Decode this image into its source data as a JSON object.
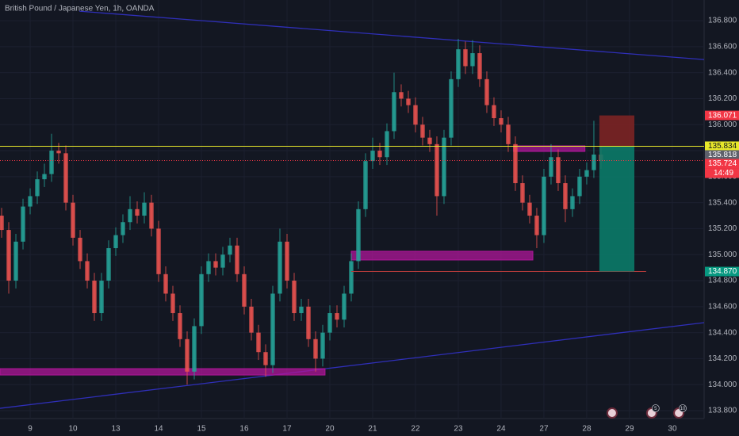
{
  "chart_data": {
    "type": "candlestick",
    "title": "British Pound / Japanese Yen, 1h, OANDA",
    "up_color": "#26a69a",
    "down_color": "#ef5350",
    "grid": true,
    "xlim": [
      -16.9,
      377.8
    ],
    "ylim": [
      133.739,
      136.959
    ],
    "xticks": [
      {
        "value": 0,
        "label": "9"
      },
      {
        "value": 24,
        "label": "10"
      },
      {
        "value": 48,
        "label": "13"
      },
      {
        "value": 72,
        "label": "14"
      },
      {
        "value": 96,
        "label": "15"
      },
      {
        "value": 120,
        "label": "16"
      },
      {
        "value": 144,
        "label": "17"
      },
      {
        "value": 168,
        "label": "20"
      },
      {
        "value": 192,
        "label": "21"
      },
      {
        "value": 216,
        "label": "22"
      },
      {
        "value": 240,
        "label": "23"
      },
      {
        "value": 264,
        "label": "24"
      },
      {
        "value": 288,
        "label": "27"
      },
      {
        "value": 312,
        "label": "28"
      },
      {
        "value": 336,
        "label": "29"
      },
      {
        "value": 360,
        "label": "30"
      }
    ],
    "yticks": [
      {
        "value": 133.8,
        "label": "133.800"
      },
      {
        "value": 134,
        "label": "134.000"
      },
      {
        "value": 134.2,
        "label": "134.200"
      },
      {
        "value": 134.4,
        "label": "134.400"
      },
      {
        "value": 134.6,
        "label": "134.600"
      },
      {
        "value": 134.8,
        "label": "134.800"
      },
      {
        "value": 135,
        "label": "135.000"
      },
      {
        "value": 135.2,
        "label": "135.200"
      },
      {
        "value": 135.4,
        "label": "135.400"
      },
      {
        "value": 135.6,
        "label": "135.600"
      },
      {
        "value": 135.8,
        "label": "135.800"
      },
      {
        "value": 136,
        "label": "136.000"
      },
      {
        "value": 136.2,
        "label": "136.200"
      },
      {
        "value": 136.4,
        "label": "136.400"
      },
      {
        "value": 136.6,
        "label": "136.600"
      },
      {
        "value": 136.8,
        "label": "136.800"
      }
    ],
    "x": [
      -16,
      -12,
      -8,
      -4,
      0,
      4,
      8,
      12,
      16,
      20,
      24,
      28,
      32,
      36,
      40,
      44,
      48,
      52,
      56,
      60,
      64,
      68,
      72,
      76,
      80,
      84,
      88,
      92,
      96,
      100,
      104,
      108,
      112,
      116,
      120,
      124,
      128,
      132,
      136,
      140,
      144,
      148,
      152,
      156,
      160,
      164,
      168,
      172,
      176,
      180,
      184,
      188,
      192,
      196,
      200,
      204,
      208,
      212,
      216,
      220,
      224,
      228,
      232,
      236,
      240,
      244,
      248,
      252,
      256,
      260,
      264,
      268,
      272,
      276,
      280,
      284,
      288,
      292,
      296,
      300,
      304,
      308,
      312,
      316,
      320
    ],
    "ohlc": [
      [
        135.3,
        135.36,
        135.13,
        135.19
      ],
      [
        135.19,
        135.25,
        134.7,
        134.8
      ],
      [
        134.8,
        135.16,
        134.74,
        135.1
      ],
      [
        135.1,
        135.43,
        135.04,
        135.37
      ],
      [
        135.37,
        135.51,
        135.31,
        135.45
      ],
      [
        135.45,
        135.64,
        135.39,
        135.58
      ],
      [
        135.58,
        135.7,
        135.52,
        135.62
      ],
      [
        135.62,
        135.93,
        135.56,
        135.8
      ],
      [
        135.8,
        135.86,
        135.7,
        135.78
      ],
      [
        135.78,
        135.84,
        135.34,
        135.4
      ],
      [
        135.4,
        135.46,
        135.07,
        135.13
      ],
      [
        135.13,
        135.19,
        134.89,
        134.95
      ],
      [
        134.95,
        135.01,
        134.74,
        134.8
      ],
      [
        134.8,
        134.86,
        134.49,
        134.55
      ],
      [
        134.55,
        134.86,
        134.49,
        134.8
      ],
      [
        134.8,
        135.11,
        134.74,
        135.05
      ],
      [
        135.05,
        135.21,
        134.99,
        135.15
      ],
      [
        135.15,
        135.31,
        135.09,
        135.25
      ],
      [
        135.25,
        135.45,
        135.19,
        135.35
      ],
      [
        135.35,
        135.41,
        135.24,
        135.3
      ],
      [
        135.3,
        135.48,
        135.24,
        135.4
      ],
      [
        135.4,
        135.46,
        135.14,
        135.2
      ],
      [
        135.2,
        135.26,
        134.79,
        134.85
      ],
      [
        134.85,
        134.91,
        134.64,
        134.7
      ],
      [
        134.7,
        134.76,
        134.49,
        134.55
      ],
      [
        134.55,
        134.61,
        134.29,
        134.35
      ],
      [
        134.35,
        134.41,
        134.0,
        134.1
      ],
      [
        134.1,
        134.51,
        134.04,
        134.45
      ],
      [
        134.45,
        134.91,
        134.39,
        134.85
      ],
      [
        134.85,
        135.01,
        134.79,
        134.95
      ],
      [
        134.95,
        135.01,
        134.84,
        134.9
      ],
      [
        134.9,
        135.06,
        134.84,
        135.0
      ],
      [
        135.0,
        135.13,
        134.94,
        135.07
      ],
      [
        135.07,
        135.13,
        134.79,
        134.85
      ],
      [
        134.85,
        134.91,
        134.54,
        134.6
      ],
      [
        134.6,
        134.66,
        134.34,
        134.4
      ],
      [
        134.4,
        134.46,
        134.19,
        134.25
      ],
      [
        134.25,
        134.31,
        134.06,
        134.15
      ],
      [
        134.15,
        134.76,
        134.09,
        134.7
      ],
      [
        134.7,
        135.2,
        134.64,
        135.1
      ],
      [
        135.1,
        135.16,
        134.74,
        134.8
      ],
      [
        134.8,
        134.86,
        134.49,
        134.55
      ],
      [
        134.55,
        134.66,
        134.49,
        134.6
      ],
      [
        134.6,
        134.66,
        134.29,
        134.35
      ],
      [
        134.35,
        134.41,
        134.1,
        134.2
      ],
      [
        134.2,
        134.46,
        134.14,
        134.4
      ],
      [
        134.4,
        134.61,
        134.34,
        134.55
      ],
      [
        134.55,
        134.61,
        134.44,
        134.5
      ],
      [
        134.5,
        134.76,
        134.44,
        134.7
      ],
      [
        134.7,
        135.01,
        134.64,
        134.95
      ],
      [
        134.95,
        135.41,
        134.89,
        135.35
      ],
      [
        135.35,
        135.78,
        135.29,
        135.72
      ],
      [
        135.72,
        135.9,
        135.66,
        135.8
      ],
      [
        135.8,
        135.86,
        135.69,
        135.75
      ],
      [
        135.75,
        136.01,
        135.69,
        135.95
      ],
      [
        135.95,
        136.4,
        135.89,
        136.25
      ],
      [
        136.25,
        136.31,
        136.14,
        136.2
      ],
      [
        136.2,
        136.26,
        136.09,
        136.15
      ],
      [
        136.15,
        136.21,
        135.94,
        136.0
      ],
      [
        136.0,
        136.06,
        135.84,
        135.9
      ],
      [
        135.9,
        135.96,
        135.79,
        135.85
      ],
      [
        135.85,
        135.91,
        135.3,
        135.45
      ],
      [
        135.45,
        135.96,
        135.39,
        135.9
      ],
      [
        135.9,
        136.41,
        135.84,
        136.35
      ],
      [
        136.35,
        136.66,
        136.29,
        136.58
      ],
      [
        136.58,
        136.64,
        136.39,
        136.45
      ],
      [
        136.45,
        136.65,
        136.39,
        136.55
      ],
      [
        136.55,
        136.61,
        136.29,
        136.35
      ],
      [
        136.35,
        136.41,
        136.09,
        136.15
      ],
      [
        136.15,
        136.21,
        135.99,
        136.05
      ],
      [
        136.05,
        136.11,
        135.94,
        136.0
      ],
      [
        136.0,
        136.06,
        135.79,
        135.85
      ],
      [
        135.85,
        135.91,
        135.49,
        135.55
      ],
      [
        135.55,
        135.61,
        135.34,
        135.4
      ],
      [
        135.4,
        135.46,
        135.24,
        135.3
      ],
      [
        135.3,
        135.36,
        135.05,
        135.15
      ],
      [
        135.15,
        135.66,
        135.09,
        135.6
      ],
      [
        135.6,
        135.85,
        135.54,
        135.75
      ],
      [
        135.75,
        135.81,
        135.49,
        135.55
      ],
      [
        135.55,
        135.61,
        135.25,
        135.35
      ],
      [
        135.35,
        135.51,
        135.29,
        135.45
      ],
      [
        135.45,
        135.66,
        135.39,
        135.6
      ],
      [
        135.6,
        135.71,
        135.54,
        135.65
      ],
      [
        135.65,
        136.03,
        135.59,
        135.77
      ],
      [
        135.77,
        135.83,
        135.66,
        135.72
      ]
    ],
    "zones": [
      {
        "x": [
          -16.9,
          165.3
        ],
        "prices": [
          134.123,
          134.074
        ]
      },
      {
        "x": [
          180,
          281.8
        ],
        "prices": [
          135.026,
          134.959
        ]
      },
      {
        "x": [
          271,
          311
        ],
        "prices": [
          135.837,
          135.794
        ]
      }
    ],
    "zone_color": "#b0179a",
    "trendlines": [
      {
        "x": [
          27.6,
          377.8
        ],
        "prices": [
          136.873,
          136.501
        ]
      },
      {
        "x": [
          -16.9,
          377.8
        ],
        "prices": [
          133.818,
          134.477
        ]
      }
    ],
    "trendline_color": "#2f2fb8",
    "hlines": [
      {
        "price": 135.834,
        "color": "#e8e82a",
        "dashed": false
      },
      {
        "price": 135.724,
        "color": "#f23645",
        "dashed": true
      }
    ],
    "segments": [
      {
        "x": [
          180,
          345.3
        ],
        "price": 134.87,
        "color": "#b23a3a"
      }
    ],
    "position": {
      "x": [
        319.1,
        338.7
      ],
      "stop": 136.071,
      "entry": 135.834,
      "target": 134.87,
      "loss_color": "#7c2424",
      "profit_color": "#0b7a68"
    },
    "price_labels": [
      {
        "value": 136.071,
        "label": "136.071",
        "color": "#f23645"
      },
      {
        "value": 135.834,
        "label": "135.834",
        "color": "#e8e82a"
      },
      {
        "value": 135.818,
        "label": "135.818",
        "color": "#5d606b"
      },
      {
        "value": 135.724,
        "label": "135.724",
        "color": "#f23645"
      },
      {
        "value": 134.87,
        "label": "134.870",
        "color": "#089981"
      }
    ],
    "countdown": "14:49",
    "events": [
      {
        "x": 326.2
      },
      {
        "x": 348.4,
        "badge": "5"
      },
      {
        "x": 363.6,
        "badge": "10"
      }
    ]
  }
}
